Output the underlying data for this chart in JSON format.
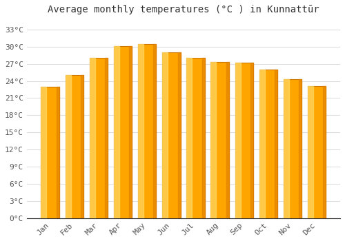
{
  "title": "Average monthly temperatures (°C ) in Kunnattūr",
  "months": [
    "Jan",
    "Feb",
    "Mar",
    "Apr",
    "May",
    "Jun",
    "Jul",
    "Aug",
    "Sep",
    "Oct",
    "Nov",
    "Dec"
  ],
  "temperatures": [
    23.0,
    25.0,
    28.0,
    30.1,
    30.5,
    29.0,
    28.0,
    27.3,
    27.2,
    26.0,
    24.3,
    23.1
  ],
  "bar_color_left": "#FFD966",
  "bar_color_mid": "#FFA500",
  "bar_color_right": "#E08000",
  "bar_edge_color": "#CC7700",
  "background_color": "#ffffff",
  "grid_color": "#dddddd",
  "ylim": [
    0,
    35
  ],
  "yticks": [
    0,
    3,
    6,
    9,
    12,
    15,
    18,
    21,
    24,
    27,
    30,
    33
  ],
  "ytick_labels": [
    "0°C",
    "3°C",
    "6°C",
    "9°C",
    "12°C",
    "15°C",
    "18°C",
    "21°C",
    "24°C",
    "27°C",
    "30°C",
    "33°C"
  ],
  "title_fontsize": 10,
  "tick_fontsize": 8,
  "bar_width": 0.75
}
